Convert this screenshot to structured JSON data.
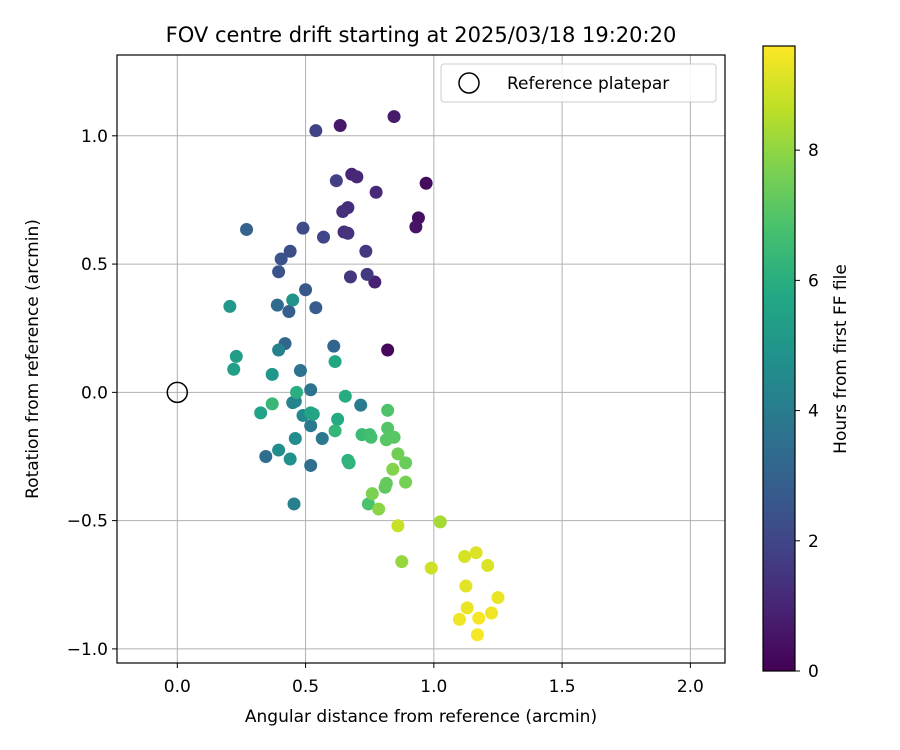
{
  "chart_data": {
    "type": "scatter",
    "title": "FOV centre drift starting at 2025/03/18 19:20:20",
    "xlabel": "Angular distance from reference (arcmin)",
    "ylabel": "Rotation from reference (arcmin)",
    "xlim": [
      -0.235,
      2.135
    ],
    "ylim": [
      -1.055,
      1.315
    ],
    "x_ticks": [
      0.0,
      0.5,
      1.0,
      1.5,
      2.0
    ],
    "x_tick_labels": [
      "0.0",
      "0.5",
      "1.0",
      "1.5",
      "2.0"
    ],
    "y_ticks": [
      -1.0,
      -0.5,
      0.0,
      0.5,
      1.0
    ],
    "y_tick_labels": [
      "−1.0",
      "−0.5",
      "0.0",
      "0.5",
      "1.0"
    ],
    "grid": true,
    "legend": {
      "placement": "top-right",
      "entries": [
        {
          "label": "Reference platepar",
          "marker": "open-circle",
          "x": 0.0,
          "y": 0.0
        }
      ]
    },
    "colorbar": {
      "label": "Hours from first FF file",
      "colormap": "viridis",
      "range": [
        0,
        9.6
      ],
      "ticks": [
        0,
        2,
        4,
        6,
        8
      ],
      "tick_labels": [
        "0",
        "2",
        "4",
        "6",
        "8"
      ]
    },
    "points": [
      {
        "x": 0.82,
        "y": 0.165,
        "c": 0.2
      },
      {
        "x": 0.97,
        "y": 0.815,
        "c": 0.3
      },
      {
        "x": 0.94,
        "y": 0.68,
        "c": 0.4
      },
      {
        "x": 0.93,
        "y": 0.645,
        "c": 0.5
      },
      {
        "x": 0.635,
        "y": 1.04,
        "c": 0.6
      },
      {
        "x": 0.845,
        "y": 1.075,
        "c": 0.7
      },
      {
        "x": 0.77,
        "y": 0.43,
        "c": 0.9
      },
      {
        "x": 0.68,
        "y": 0.85,
        "c": 1.0
      },
      {
        "x": 0.7,
        "y": 0.84,
        "c": 1.1
      },
      {
        "x": 0.775,
        "y": 0.78,
        "c": 1.1
      },
      {
        "x": 0.665,
        "y": 0.72,
        "c": 1.2
      },
      {
        "x": 0.645,
        "y": 0.705,
        "c": 1.3
      },
      {
        "x": 0.65,
        "y": 0.625,
        "c": 1.3
      },
      {
        "x": 0.665,
        "y": 0.62,
        "c": 1.4
      },
      {
        "x": 0.675,
        "y": 0.45,
        "c": 1.5
      },
      {
        "x": 0.735,
        "y": 0.55,
        "c": 1.6
      },
      {
        "x": 0.74,
        "y": 0.46,
        "c": 1.6
      },
      {
        "x": 0.62,
        "y": 0.825,
        "c": 1.8
      },
      {
        "x": 0.54,
        "y": 1.02,
        "c": 1.9
      },
      {
        "x": 0.57,
        "y": 0.605,
        "c": 2.0
      },
      {
        "x": 0.49,
        "y": 0.64,
        "c": 2.2
      },
      {
        "x": 0.44,
        "y": 0.55,
        "c": 2.3
      },
      {
        "x": 0.405,
        "y": 0.52,
        "c": 2.4
      },
      {
        "x": 0.395,
        "y": 0.47,
        "c": 2.5
      },
      {
        "x": 0.5,
        "y": 0.4,
        "c": 2.6
      },
      {
        "x": 0.54,
        "y": 0.33,
        "c": 2.8
      },
      {
        "x": 0.435,
        "y": 0.315,
        "c": 2.9
      },
      {
        "x": 0.27,
        "y": 0.635,
        "c": 3.0
      },
      {
        "x": 0.61,
        "y": 0.18,
        "c": 3.1
      },
      {
        "x": 0.42,
        "y": 0.19,
        "c": 3.2
      },
      {
        "x": 0.39,
        "y": 0.34,
        "c": 3.3
      },
      {
        "x": 0.345,
        "y": -0.25,
        "c": 3.4
      },
      {
        "x": 0.52,
        "y": -0.285,
        "c": 3.5
      },
      {
        "x": 0.48,
        "y": 0.085,
        "c": 3.6
      },
      {
        "x": 0.52,
        "y": 0.01,
        "c": 3.7
      },
      {
        "x": 0.565,
        "y": -0.18,
        "c": 3.8
      },
      {
        "x": 0.52,
        "y": -0.13,
        "c": 3.9
      },
      {
        "x": 0.715,
        "y": -0.05,
        "c": 4.0
      },
      {
        "x": 0.455,
        "y": -0.435,
        "c": 4.1
      },
      {
        "x": 0.395,
        "y": 0.165,
        "c": 4.2
      },
      {
        "x": 0.46,
        "y": -0.035,
        "c": 4.3
      },
      {
        "x": 0.45,
        "y": -0.04,
        "c": 4.3
      },
      {
        "x": 0.49,
        "y": -0.09,
        "c": 4.5
      },
      {
        "x": 0.46,
        "y": -0.18,
        "c": 4.6
      },
      {
        "x": 0.395,
        "y": -0.225,
        "c": 4.7
      },
      {
        "x": 0.44,
        "y": -0.26,
        "c": 4.8
      },
      {
        "x": 0.45,
        "y": 0.36,
        "c": 4.9
      },
      {
        "x": 0.37,
        "y": 0.07,
        "c": 5.0
      },
      {
        "x": 0.205,
        "y": 0.335,
        "c": 5.1
      },
      {
        "x": 0.23,
        "y": 0.14,
        "c": 5.3
      },
      {
        "x": 0.22,
        "y": 0.09,
        "c": 5.4
      },
      {
        "x": 0.325,
        "y": -0.08,
        "c": 5.5
      },
      {
        "x": 0.52,
        "y": -0.08,
        "c": 5.6
      },
      {
        "x": 0.53,
        "y": -0.085,
        "c": 5.6
      },
      {
        "x": 0.615,
        "y": 0.12,
        "c": 5.7
      },
      {
        "x": 0.625,
        "y": -0.105,
        "c": 5.8
      },
      {
        "x": 0.655,
        "y": -0.015,
        "c": 5.9
      },
      {
        "x": 0.465,
        "y": 0.0,
        "c": 6.0
      },
      {
        "x": 0.665,
        "y": -0.265,
        "c": 6.1
      },
      {
        "x": 0.67,
        "y": -0.275,
        "c": 6.2
      },
      {
        "x": 0.615,
        "y": -0.15,
        "c": 6.3
      },
      {
        "x": 0.37,
        "y": -0.045,
        "c": 6.4
      },
      {
        "x": 0.72,
        "y": -0.165,
        "c": 6.5
      },
      {
        "x": 0.75,
        "y": -0.165,
        "c": 6.6
      },
      {
        "x": 0.755,
        "y": -0.175,
        "c": 6.7
      },
      {
        "x": 0.745,
        "y": -0.435,
        "c": 6.8
      },
      {
        "x": 0.82,
        "y": -0.07,
        "c": 6.9
      },
      {
        "x": 0.82,
        "y": -0.14,
        "c": 7.0
      },
      {
        "x": 0.815,
        "y": -0.185,
        "c": 7.1
      },
      {
        "x": 0.845,
        "y": -0.175,
        "c": 7.1
      },
      {
        "x": 0.81,
        "y": -0.37,
        "c": 7.2
      },
      {
        "x": 0.815,
        "y": -0.355,
        "c": 7.3
      },
      {
        "x": 0.89,
        "y": -0.275,
        "c": 7.4
      },
      {
        "x": 0.86,
        "y": -0.24,
        "c": 7.5
      },
      {
        "x": 0.89,
        "y": -0.35,
        "c": 7.6
      },
      {
        "x": 0.76,
        "y": -0.395,
        "c": 7.7
      },
      {
        "x": 0.84,
        "y": -0.3,
        "c": 7.8
      },
      {
        "x": 0.785,
        "y": -0.455,
        "c": 7.9
      },
      {
        "x": 0.875,
        "y": -0.66,
        "c": 8.1
      },
      {
        "x": 1.025,
        "y": -0.505,
        "c": 8.3
      },
      {
        "x": 0.86,
        "y": -0.52,
        "c": 8.8
      },
      {
        "x": 0.99,
        "y": -0.685,
        "c": 8.9
      },
      {
        "x": 1.12,
        "y": -0.64,
        "c": 9.0
      },
      {
        "x": 1.165,
        "y": -0.625,
        "c": 9.1
      },
      {
        "x": 1.21,
        "y": -0.675,
        "c": 9.1
      },
      {
        "x": 1.125,
        "y": -0.755,
        "c": 9.2
      },
      {
        "x": 1.25,
        "y": -0.8,
        "c": 9.3
      },
      {
        "x": 1.13,
        "y": -0.84,
        "c": 9.3
      },
      {
        "x": 1.225,
        "y": -0.86,
        "c": 9.4
      },
      {
        "x": 1.1,
        "y": -0.885,
        "c": 9.4
      },
      {
        "x": 1.175,
        "y": -0.88,
        "c": 9.5
      },
      {
        "x": 1.17,
        "y": -0.945,
        "c": 9.5
      }
    ]
  }
}
